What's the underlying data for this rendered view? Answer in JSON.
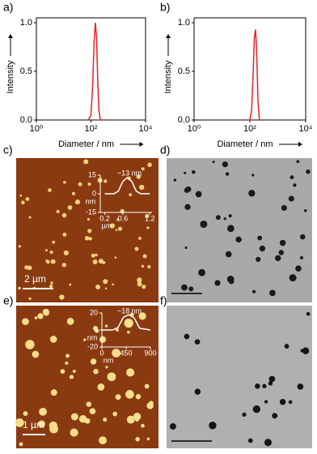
{
  "chart_data": [
    {
      "type": "line",
      "label": "a)",
      "xlabel": "Diameter / nm",
      "ylabel": "Intensity",
      "xscale": "log",
      "xlim": [
        1,
        10000
      ],
      "xticks": [
        {
          "value": 1,
          "label": "10⁰"
        },
        {
          "value": 100,
          "label": "10²"
        },
        {
          "value": 10000,
          "label": "10⁴"
        }
      ],
      "ylim": [
        0,
        1.05
      ],
      "yticks": [
        {
          "value": 0,
          "label": "0.0"
        },
        {
          "value": 0.5,
          "label": "0.5"
        },
        {
          "value": 1,
          "label": "1.0"
        }
      ],
      "x": [
        80,
        100,
        115,
        130,
        145,
        160,
        175,
        195,
        220,
        260
      ],
      "series": [
        {
          "color": "#e8212b",
          "values": [
            0,
            0.05,
            0.35,
            0.8,
            1.0,
            0.85,
            0.45,
            0.1,
            0,
            0
          ]
        }
      ]
    },
    {
      "type": "line",
      "label": "b)",
      "xlabel": "Diameter / nm",
      "ylabel": "Intensity",
      "xscale": "log",
      "xlim": [
        1,
        10000
      ],
      "xticks": [
        {
          "value": 1,
          "label": "10⁰"
        },
        {
          "value": 100,
          "label": "10²"
        },
        {
          "value": 10000,
          "label": "10⁴"
        }
      ],
      "ylim": [
        0,
        1.05
      ],
      "yticks": [
        {
          "value": 0,
          "label": "0.0"
        },
        {
          "value": 0.5,
          "label": "0.5"
        },
        {
          "value": 1,
          "label": "1.0"
        }
      ],
      "x": [
        80,
        100,
        115,
        130,
        145,
        160,
        175,
        195,
        220,
        260
      ],
      "series": [
        {
          "color": "#e8212b",
          "values": [
            0,
            0,
            0.1,
            0.45,
            0.85,
            0.93,
            0.7,
            0.2,
            0,
            0
          ]
        }
      ]
    },
    {
      "type": "line",
      "xlabel": "µm",
      "ylabel": "nm",
      "annotation": "~13 nm",
      "xlim": [
        0.1,
        1.25
      ],
      "xticks": [
        0.2,
        0.6,
        1.2
      ],
      "ylim": [
        -15,
        15
      ],
      "yticks": [
        15,
        0,
        -15
      ],
      "x": [
        0.2,
        0.4,
        0.5,
        0.6,
        0.7,
        0.8,
        0.9,
        1.0,
        1.2
      ],
      "series": [
        {
          "color": "#ffffff",
          "values": [
            0,
            0,
            2,
            10,
            13,
            10,
            2,
            0,
            0
          ]
        }
      ]
    },
    {
      "type": "line",
      "xlabel": "nm",
      "ylabel": "nm",
      "annotation": "~18 nm",
      "xlim": [
        0,
        900
      ],
      "xticks": [
        0,
        450,
        900
      ],
      "ylim": [
        -20,
        20
      ],
      "yticks": [
        20,
        0,
        -20
      ],
      "x": [
        0,
        200,
        300,
        400,
        500,
        600,
        700,
        900
      ],
      "series": [
        {
          "color": "#ffffff",
          "values": [
            0,
            0,
            3,
            15,
            18,
            14,
            2,
            0
          ]
        }
      ]
    }
  ],
  "panels": [
    {
      "label": "c)",
      "scale_bar": "2 µm"
    },
    {
      "label": "d)"
    },
    {
      "label": "e)",
      "scale_bar": "1 µm"
    },
    {
      "label": "f)"
    }
  ]
}
